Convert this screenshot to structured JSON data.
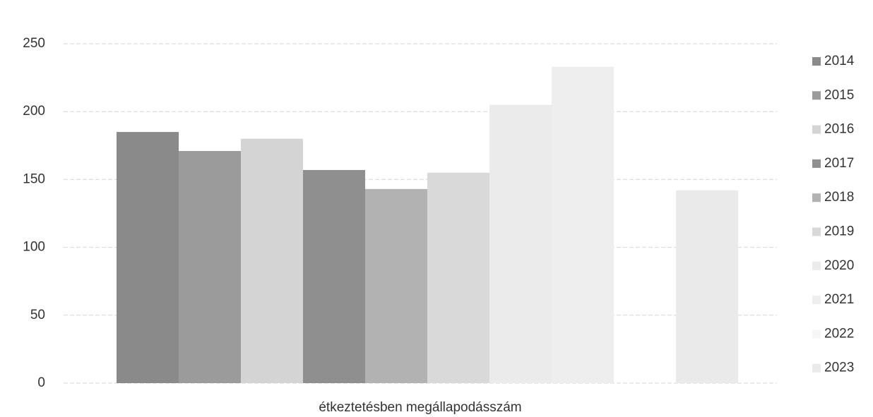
{
  "chart_data": {
    "type": "bar",
    "categories": [
      "étkeztetésben megállapodásszám"
    ],
    "series": [
      {
        "name": "2014",
        "color": "#8a8a8a",
        "values": [
          185
        ]
      },
      {
        "name": "2015",
        "color": "#9b9b9b",
        "values": [
          171
        ]
      },
      {
        "name": "2016",
        "color": "#d4d4d4",
        "values": [
          180
        ]
      },
      {
        "name": "2017",
        "color": "#8f8f8f",
        "values": [
          157
        ]
      },
      {
        "name": "2018",
        "color": "#b2b2b2",
        "values": [
          143
        ]
      },
      {
        "name": "2019",
        "color": "#d9d9d9",
        "values": [
          155
        ]
      },
      {
        "name": "2020",
        "color": "#ebebeb",
        "values": [
          205
        ]
      },
      {
        "name": "2021",
        "color": "#eeeeee",
        "values": [
          233
        ]
      },
      {
        "name": "2022",
        "color": "#f6f6f6",
        "values": [
          0
        ]
      },
      {
        "name": "2023",
        "color": "#eaeaea",
        "values": [
          142
        ]
      }
    ],
    "ylim": [
      0,
      250
    ],
    "yticks": [
      0,
      50,
      100,
      150,
      200,
      250
    ],
    "grid": true,
    "legend": "right"
  }
}
